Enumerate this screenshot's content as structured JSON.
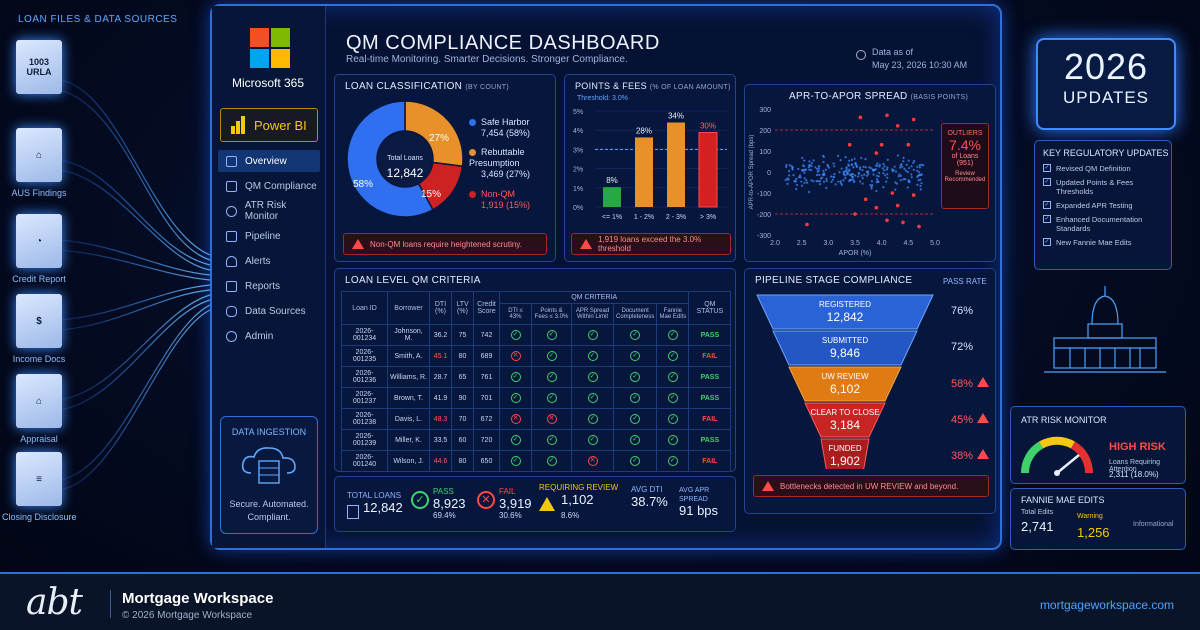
{
  "sources": {
    "title": "LOAN FILES & DATA SOURCES",
    "items": [
      {
        "label": "1003\nURLA",
        "caption": ""
      },
      {
        "label": "",
        "caption": "AUS Findings"
      },
      {
        "label": "",
        "caption": "Credit Report"
      },
      {
        "label": "",
        "caption": "Income Docs"
      },
      {
        "label": "",
        "caption": "Appraisal"
      },
      {
        "label": "",
        "caption": "Closing Disclosure"
      }
    ],
    "doc_1003_top": "1003",
    "doc_1003_bottom": "URLA"
  },
  "sidebar": {
    "ms_name": "Microsoft 365",
    "powerbi": "Power BI",
    "nav": [
      "Overview",
      "QM Compliance",
      "ATR Risk Monitor",
      "Pipeline",
      "Alerts",
      "Reports",
      "Data Sources",
      "Admin"
    ],
    "ingest_title": "DATA INGESTION",
    "ingest_caption1": "Secure. Automated.",
    "ingest_caption2": "Compliant."
  },
  "header": {
    "title": "QM COMPLIANCE DASHBOARD",
    "subtitle": "Real-time Monitoring. Smarter Decisions. Stronger Compliance.",
    "asof_label": "Data as of",
    "asof_value": "May 23, 2026 10:30 AM"
  },
  "classification": {
    "title": "LOAN CLASSIFICATION",
    "title_small": "(BY COUNT)",
    "center_label": "Total Loans",
    "center_value": "12,842",
    "pct_safe": "58%",
    "pct_reb": "27%",
    "pct_non": "15%",
    "legend": [
      {
        "name": "Safe Harbor",
        "value": "7,454 (58%)"
      },
      {
        "name": "Rebuttable Presumption",
        "value": "3,469 (27%)"
      },
      {
        "name": "Non-QM",
        "value": "1,919 (15%)"
      }
    ],
    "warning": "Non-QM loans require heightened scrutiny."
  },
  "chart_data": [
    {
      "type": "pie",
      "title": "LOAN CLASSIFICATION",
      "categories": [
        "Safe Harbor",
        "Rebuttable Presumption",
        "Non-QM"
      ],
      "values": [
        58,
        27,
        15
      ],
      "colors": [
        "#2f6ff0",
        "#e8902a",
        "#cc2222"
      ]
    },
    {
      "type": "bar",
      "title": "POINTS & FEES",
      "categories": [
        "<= 1%",
        "1 - 2%",
        "2 - 3%",
        "> 3%"
      ],
      "values": [
        8,
        28,
        34,
        30
      ],
      "ylim": [
        0,
        5
      ],
      "threshold": 3.0,
      "colors": [
        "#27a845",
        "#e8902a",
        "#e8902a",
        "#d42020"
      ]
    },
    {
      "type": "scatter",
      "title": "APR-TO-APOR SPREAD",
      "xlabel": "APOR (%)",
      "ylabel": "APR-to-APOR Spread (bps)",
      "xlim": [
        2.0,
        5.0
      ],
      "ylim": [
        -300,
        300
      ],
      "outlier_band": [
        -200,
        200
      ]
    }
  ],
  "fees": {
    "title": "POINTS & FEES",
    "title_small": "(% OF LOAN AMOUNT)",
    "threshold": "Threshold: 3.0%",
    "yticks": [
      "5%",
      "4%",
      "3%",
      "2%",
      "1%",
      "0%"
    ],
    "bar_labels": [
      "8%",
      "28%",
      "34%",
      "30%"
    ],
    "categories": [
      "<= 1%",
      "1 - 2%",
      "2 - 3%",
      "> 3%"
    ],
    "warning": "1,919 loans exceed the 3.0% threshold"
  },
  "spread": {
    "title": "APR-TO-APOR SPREAD",
    "title_small": "(BASIS POINTS)",
    "yticks": [
      "300",
      "200",
      "100",
      "0",
      "-100",
      "-200",
      "-300"
    ],
    "xticks": [
      "2.0",
      "2.5",
      "3.0",
      "3.5",
      "4.0",
      "4.5",
      "5.0"
    ],
    "ylabel": "APR-to-APOR Spread (bps)",
    "xlabel": "APOR (%)",
    "outliers_label": "OUTLIERS",
    "outliers_pct": "7.4%",
    "outliers_of": "of Loans",
    "outliers_count": "(951)",
    "outliers_note1": "Review",
    "outliers_note2": "Recommended"
  },
  "criteria": {
    "title": "LOAN LEVEL QM CRITERIA",
    "group_header": "QM CRITERIA",
    "headers": [
      "Loan ID",
      "Borrower",
      "DTI (%)",
      "LTV (%)",
      "Credit Score",
      "DTI ≤ 43%",
      "Points & Fees ≤ 3.0%",
      "APR Spread Within Limit",
      "Document Completeness",
      "Fannie Mae Edits",
      "QM STATUS"
    ],
    "rows": [
      {
        "id": "2026-001234",
        "name": "Johnson, M.",
        "dti": "36.2",
        "ltv": "75",
        "score": "742",
        "c": [
          1,
          1,
          1,
          1,
          1
        ],
        "status": "PASS"
      },
      {
        "id": "2026-001235",
        "name": "Smith, A.",
        "dti": "45.1",
        "ltv": "80",
        "score": "689",
        "c": [
          0,
          1,
          1,
          1,
          1
        ],
        "status": "FAIL"
      },
      {
        "id": "2026-001236",
        "name": "Williams, R.",
        "dti": "28.7",
        "ltv": "65",
        "score": "761",
        "c": [
          1,
          1,
          1,
          1,
          1
        ],
        "status": "PASS"
      },
      {
        "id": "2026-001237",
        "name": "Brown, T.",
        "dti": "41.9",
        "ltv": "90",
        "score": "701",
        "c": [
          1,
          1,
          1,
          1,
          1
        ],
        "status": "PASS"
      },
      {
        "id": "2026-001238",
        "name": "Davis, L.",
        "dti": "48.3",
        "ltv": "70",
        "score": "672",
        "c": [
          0,
          0,
          1,
          1,
          1
        ],
        "status": "FAIL"
      },
      {
        "id": "2026-001239",
        "name": "Miller, K.",
        "dti": "33.5",
        "ltv": "60",
        "score": "720",
        "c": [
          1,
          1,
          1,
          1,
          1
        ],
        "status": "PASS"
      },
      {
        "id": "2026-001240",
        "name": "Wilson, J.",
        "dti": "44.6",
        "ltv": "80",
        "score": "650",
        "c": [
          1,
          1,
          0,
          1,
          1
        ],
        "status": "FAIL"
      }
    ]
  },
  "kpis": {
    "total_label": "TOTAL LOANS",
    "total": "12,842",
    "pass_label": "PASS",
    "pass": "8,923",
    "pass_pct": "69.4%",
    "fail_label": "FAIL",
    "fail": "3,919",
    "fail_pct": "30.6%",
    "review_label": "REQUIRING REVIEW",
    "review": "1,102",
    "review_pct": "8.6%",
    "dti_label": "AVG DTI",
    "dti": "38.7%",
    "apr_label": "AVG APR SPREAD",
    "apr": "91 bps"
  },
  "pipeline": {
    "title": "PIPELINE STAGE COMPLIANCE",
    "rate_header": "PASS RATE",
    "stages": [
      {
        "name": "REGISTERED",
        "value": "12,842",
        "rate": "76%"
      },
      {
        "name": "SUBMITTED",
        "value": "9,846",
        "rate": "72%"
      },
      {
        "name": "UW REVIEW",
        "value": "6,102",
        "rate": "58%"
      },
      {
        "name": "CLEAR TO CLOSE",
        "value": "3,184",
        "rate": "45%"
      },
      {
        "name": "FUNDED",
        "value": "1,902",
        "rate": "38%"
      }
    ],
    "warning": "Bottlenecks detected in UW REVIEW and beyond."
  },
  "right": {
    "year": "2026",
    "updates": "UPDATES",
    "kru_title": "KEY REGULATORY UPDATES",
    "kru_items": [
      "Revised QM Definition",
      "Updated Points & Fees Thresholds",
      "Expanded APR Testing",
      "Enhanced Documentation Standards",
      "New Fannie Mae Edits"
    ],
    "atr_title": "ATR RISK MONITOR",
    "atr_level": "HIGH RISK",
    "atr_caption": "Loans Requiring Attention",
    "atr_value": "2,311 (18.0%)",
    "fme_title": "FANNIE MAE EDITS",
    "fme_total_label": "Total Edits",
    "fme_total": "2,741",
    "fme_warn_label": "Warning",
    "fme_warn": "1,256",
    "fme_info_label": "Informational"
  },
  "footer": {
    "logo": "abt",
    "name": "Mortgage Workspace",
    "copy": "© 2026 Mortgage Workspace",
    "url": "mortgageworkspace.com"
  }
}
